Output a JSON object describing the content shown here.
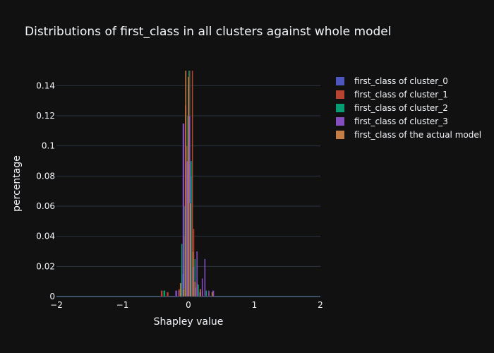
{
  "chart_data": {
    "type": "bar",
    "mode": "overlay-histogram",
    "title": "Distributions of first_class in all clusters against whole model",
    "xlabel": "Shapley value",
    "ylabel": "percentage",
    "xlim": [
      -2,
      2
    ],
    "ylim": [
      0,
      0.15
    ],
    "x_ticks": [
      -2,
      -1,
      0,
      1,
      2
    ],
    "x_tick_labels": [
      "−2",
      "−1",
      "0",
      "1",
      "2"
    ],
    "y_ticks": [
      0,
      0.02,
      0.04,
      0.06,
      0.08,
      0.1,
      0.12,
      0.14
    ],
    "y_tick_labels": [
      "0",
      "0.02",
      "0.04",
      "0.06",
      "0.08",
      "0.1",
      "0.12",
      "0.14"
    ],
    "grid": true,
    "legend_position": "top-right",
    "background": "#111111",
    "gridcolor": "#283442",
    "series": [
      {
        "name": "first_class of cluster_0",
        "color": "#636efa",
        "bins": [
          {
            "x0": -0.16,
            "x1": -0.13,
            "y": 0.004
          },
          {
            "x0": -0.1,
            "x1": -0.07,
            "y": 0.015
          },
          {
            "x0": -0.07,
            "x1": -0.04,
            "y": 0.03
          },
          {
            "x0": -0.04,
            "x1": -0.01,
            "y": 0.09
          },
          {
            "x0": -0.01,
            "x1": 0.02,
            "y": 0.14
          },
          {
            "x0": 0.02,
            "x1": 0.05,
            "y": 0.08
          },
          {
            "x0": 0.05,
            "x1": 0.08,
            "y": 0.02
          },
          {
            "x0": 0.1,
            "x1": 0.13,
            "y": 0.006
          },
          {
            "x0": 0.16,
            "x1": 0.19,
            "y": 0.003
          }
        ]
      },
      {
        "name": "first_class of cluster_1",
        "color": "#ef553b",
        "bins": [
          {
            "x0": -0.42,
            "x1": -0.39,
            "y": 0.004
          },
          {
            "x0": -0.33,
            "x1": -0.3,
            "y": 0.003
          },
          {
            "x0": -0.15,
            "x1": -0.12,
            "y": 0.005
          },
          {
            "x0": -0.07,
            "x1": -0.05,
            "y": 0.04
          },
          {
            "x0": -0.05,
            "x1": -0.03,
            "y": 0.127
          },
          {
            "x0": -0.03,
            "x1": -0.01,
            "y": 0.1
          },
          {
            "x0": 0.01,
            "x1": 0.03,
            "y": 0.15
          },
          {
            "x0": 0.05,
            "x1": 0.07,
            "y": 0.15
          },
          {
            "x0": 0.07,
            "x1": 0.09,
            "y": 0.045
          },
          {
            "x0": 0.12,
            "x1": 0.14,
            "y": 0.009
          },
          {
            "x0": 0.2,
            "x1": 0.22,
            "y": 0.004
          },
          {
            "x0": 0.3,
            "x1": 0.32,
            "y": 0.003
          }
        ]
      },
      {
        "name": "first_class of cluster_2",
        "color": "#00cc96",
        "bins": [
          {
            "x0": -0.38,
            "x1": -0.35,
            "y": 0.004
          },
          {
            "x0": -0.11,
            "x1": -0.09,
            "y": 0.035
          },
          {
            "x0": -0.06,
            "x1": -0.04,
            "y": 0.06
          },
          {
            "x0": -0.02,
            "x1": 0.0,
            "y": 0.12
          },
          {
            "x0": 0.0,
            "x1": 0.02,
            "y": 0.15
          },
          {
            "x0": 0.03,
            "x1": 0.05,
            "y": 0.09
          },
          {
            "x0": 0.09,
            "x1": 0.11,
            "y": 0.025
          },
          {
            "x0": 0.14,
            "x1": 0.16,
            "y": 0.008
          },
          {
            "x0": 0.26,
            "x1": 0.28,
            "y": 0.004
          }
        ]
      },
      {
        "name": "first_class of cluster_3",
        "color": "#ab63fa",
        "bins": [
          {
            "x0": -0.2,
            "x1": -0.17,
            "y": 0.004
          },
          {
            "x0": -0.09,
            "x1": -0.06,
            "y": 0.115
          },
          {
            "x0": -0.03,
            "x1": 0.0,
            "y": 0.09
          },
          {
            "x0": 0.0,
            "x1": 0.03,
            "y": 0.12
          },
          {
            "x0": 0.06,
            "x1": 0.09,
            "y": 0.02
          },
          {
            "x0": 0.12,
            "x1": 0.14,
            "y": 0.03
          },
          {
            "x0": 0.2,
            "x1": 0.22,
            "y": 0.012
          },
          {
            "x0": 0.24,
            "x1": 0.26,
            "y": 0.025
          },
          {
            "x0": 0.3,
            "x1": 0.32,
            "y": 0.004
          },
          {
            "x0": 0.36,
            "x1": 0.39,
            "y": 0.004
          }
        ]
      },
      {
        "name": "first_class of the actual model",
        "color": "#ffa15a",
        "bins": [
          {
            "x0": -0.13,
            "x1": -0.11,
            "y": 0.009
          },
          {
            "x0": -0.08,
            "x1": -0.06,
            "y": 0.005
          },
          {
            "x0": -0.05,
            "x1": -0.03,
            "y": 0.15
          },
          {
            "x0": -0.01,
            "x1": 0.01,
            "y": 0.146
          },
          {
            "x0": 0.02,
            "x1": 0.04,
            "y": 0.062
          },
          {
            "x0": 0.06,
            "x1": 0.08,
            "y": 0.03
          },
          {
            "x0": 0.09,
            "x1": 0.11,
            "y": 0.01
          },
          {
            "x0": 0.17,
            "x1": 0.19,
            "y": 0.005
          },
          {
            "x0": 0.35,
            "x1": 0.37,
            "y": 0.003
          }
        ]
      }
    ]
  }
}
